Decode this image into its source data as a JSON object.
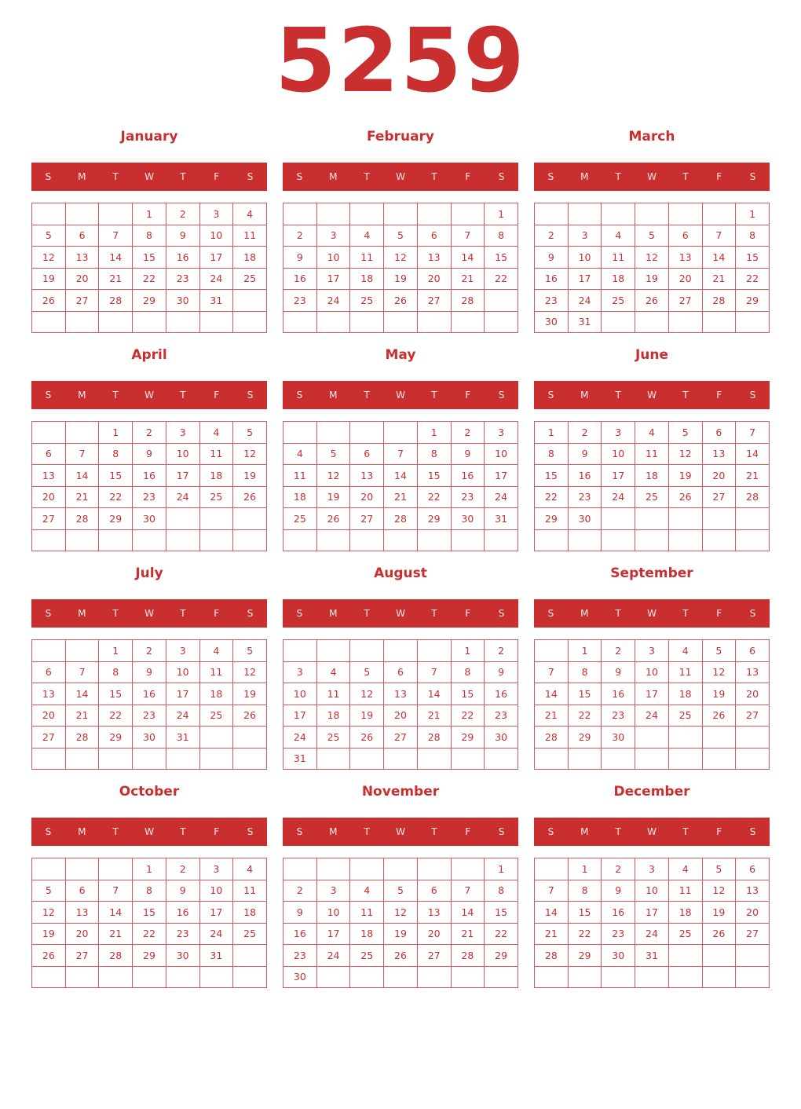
{
  "year": "5259",
  "weekday_labels": [
    "S",
    "M",
    "T",
    "W",
    "T",
    "F",
    "S"
  ],
  "accent_color": "#c92f2f",
  "months": [
    {
      "name": "January",
      "weeks": [
        [
          "",
          "",
          "",
          "1",
          "2",
          "3",
          "4"
        ],
        [
          "5",
          "6",
          "7",
          "8",
          "9",
          "10",
          "11"
        ],
        [
          "12",
          "13",
          "14",
          "15",
          "16",
          "17",
          "18"
        ],
        [
          "19",
          "20",
          "21",
          "22",
          "23",
          "24",
          "25"
        ],
        [
          "26",
          "27",
          "28",
          "29",
          "30",
          "31",
          ""
        ],
        [
          "",
          "",
          "",
          "",
          "",
          "",
          ""
        ]
      ]
    },
    {
      "name": "February",
      "weeks": [
        [
          "",
          "",
          "",
          "",
          "",
          "",
          "1"
        ],
        [
          "2",
          "3",
          "4",
          "5",
          "6",
          "7",
          "8"
        ],
        [
          "9",
          "10",
          "11",
          "12",
          "13",
          "14",
          "15"
        ],
        [
          "16",
          "17",
          "18",
          "19",
          "20",
          "21",
          "22"
        ],
        [
          "23",
          "24",
          "25",
          "26",
          "27",
          "28",
          ""
        ],
        [
          "",
          "",
          "",
          "",
          "",
          "",
          ""
        ]
      ]
    },
    {
      "name": "March",
      "weeks": [
        [
          "",
          "",
          "",
          "",
          "",
          "",
          "1"
        ],
        [
          "2",
          "3",
          "4",
          "5",
          "6",
          "7",
          "8"
        ],
        [
          "9",
          "10",
          "11",
          "12",
          "13",
          "14",
          "15"
        ],
        [
          "16",
          "17",
          "18",
          "19",
          "20",
          "21",
          "22"
        ],
        [
          "23",
          "24",
          "25",
          "26",
          "27",
          "28",
          "29"
        ],
        [
          "30",
          "31",
          "",
          "",
          "",
          "",
          ""
        ]
      ]
    },
    {
      "name": "April",
      "weeks": [
        [
          "",
          "",
          "1",
          "2",
          "3",
          "4",
          "5"
        ],
        [
          "6",
          "7",
          "8",
          "9",
          "10",
          "11",
          "12"
        ],
        [
          "13",
          "14",
          "15",
          "16",
          "17",
          "18",
          "19"
        ],
        [
          "20",
          "21",
          "22",
          "23",
          "24",
          "25",
          "26"
        ],
        [
          "27",
          "28",
          "29",
          "30",
          "",
          "",
          ""
        ],
        [
          "",
          "",
          "",
          "",
          "",
          "",
          ""
        ]
      ]
    },
    {
      "name": "May",
      "weeks": [
        [
          "",
          "",
          "",
          "",
          "1",
          "2",
          "3"
        ],
        [
          "4",
          "5",
          "6",
          "7",
          "8",
          "9",
          "10"
        ],
        [
          "11",
          "12",
          "13",
          "14",
          "15",
          "16",
          "17"
        ],
        [
          "18",
          "19",
          "20",
          "21",
          "22",
          "23",
          "24"
        ],
        [
          "25",
          "26",
          "27",
          "28",
          "29",
          "30",
          "31"
        ],
        [
          "",
          "",
          "",
          "",
          "",
          "",
          ""
        ]
      ]
    },
    {
      "name": "June",
      "weeks": [
        [
          "1",
          "2",
          "3",
          "4",
          "5",
          "6",
          "7"
        ],
        [
          "8",
          "9",
          "10",
          "11",
          "12",
          "13",
          "14"
        ],
        [
          "15",
          "16",
          "17",
          "18",
          "19",
          "20",
          "21"
        ],
        [
          "22",
          "23",
          "24",
          "25",
          "26",
          "27",
          "28"
        ],
        [
          "29",
          "30",
          "",
          "",
          "",
          "",
          ""
        ],
        [
          "",
          "",
          "",
          "",
          "",
          "",
          ""
        ]
      ]
    },
    {
      "name": "July",
      "weeks": [
        [
          "",
          "",
          "1",
          "2",
          "3",
          "4",
          "5"
        ],
        [
          "6",
          "7",
          "8",
          "9",
          "10",
          "11",
          "12"
        ],
        [
          "13",
          "14",
          "15",
          "16",
          "17",
          "18",
          "19"
        ],
        [
          "20",
          "21",
          "22",
          "23",
          "24",
          "25",
          "26"
        ],
        [
          "27",
          "28",
          "29",
          "30",
          "31",
          "",
          ""
        ],
        [
          "",
          "",
          "",
          "",
          "",
          "",
          ""
        ]
      ]
    },
    {
      "name": "August",
      "weeks": [
        [
          "",
          "",
          "",
          "",
          "",
          "1",
          "2"
        ],
        [
          "3",
          "4",
          "5",
          "6",
          "7",
          "8",
          "9"
        ],
        [
          "10",
          "11",
          "12",
          "13",
          "14",
          "15",
          "16"
        ],
        [
          "17",
          "18",
          "19",
          "20",
          "21",
          "22",
          "23"
        ],
        [
          "24",
          "25",
          "26",
          "27",
          "28",
          "29",
          "30"
        ],
        [
          "31",
          "",
          "",
          "",
          "",
          "",
          ""
        ]
      ]
    },
    {
      "name": "September",
      "weeks": [
        [
          "",
          "1",
          "2",
          "3",
          "4",
          "5",
          "6"
        ],
        [
          "7",
          "8",
          "9",
          "10",
          "11",
          "12",
          "13"
        ],
        [
          "14",
          "15",
          "16",
          "17",
          "18",
          "19",
          "20"
        ],
        [
          "21",
          "22",
          "23",
          "24",
          "25",
          "26",
          "27"
        ],
        [
          "28",
          "29",
          "30",
          "",
          "",
          "",
          ""
        ],
        [
          "",
          "",
          "",
          "",
          "",
          "",
          ""
        ]
      ]
    },
    {
      "name": "October",
      "weeks": [
        [
          "",
          "",
          "",
          "1",
          "2",
          "3",
          "4"
        ],
        [
          "5",
          "6",
          "7",
          "8",
          "9",
          "10",
          "11"
        ],
        [
          "12",
          "13",
          "14",
          "15",
          "16",
          "17",
          "18"
        ],
        [
          "19",
          "20",
          "21",
          "22",
          "23",
          "24",
          "25"
        ],
        [
          "26",
          "27",
          "28",
          "29",
          "30",
          "31",
          ""
        ],
        [
          "",
          "",
          "",
          "",
          "",
          "",
          ""
        ]
      ]
    },
    {
      "name": "November",
      "weeks": [
        [
          "",
          "",
          "",
          "",
          "",
          "",
          "1"
        ],
        [
          "2",
          "3",
          "4",
          "5",
          "6",
          "7",
          "8"
        ],
        [
          "9",
          "10",
          "11",
          "12",
          "13",
          "14",
          "15"
        ],
        [
          "16",
          "17",
          "18",
          "19",
          "20",
          "21",
          "22"
        ],
        [
          "23",
          "24",
          "25",
          "26",
          "27",
          "28",
          "29"
        ],
        [
          "30",
          "",
          "",
          "",
          "",
          "",
          ""
        ]
      ]
    },
    {
      "name": "December",
      "weeks": [
        [
          "",
          "1",
          "2",
          "3",
          "4",
          "5",
          "6"
        ],
        [
          "7",
          "8",
          "9",
          "10",
          "11",
          "12",
          "13"
        ],
        [
          "14",
          "15",
          "16",
          "17",
          "18",
          "19",
          "20"
        ],
        [
          "21",
          "22",
          "23",
          "24",
          "25",
          "26",
          "27"
        ],
        [
          "28",
          "29",
          "30",
          "31",
          "",
          "",
          ""
        ],
        [
          "",
          "",
          "",
          "",
          "",
          "",
          ""
        ]
      ]
    }
  ]
}
